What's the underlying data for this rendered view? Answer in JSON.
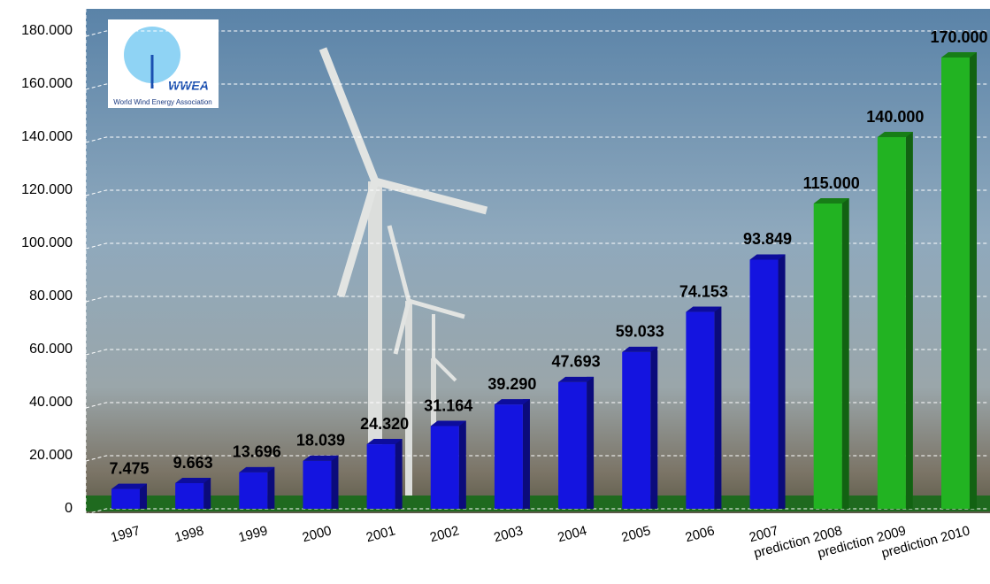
{
  "chart_data": {
    "type": "bar",
    "categories": [
      "1997",
      "1998",
      "1999",
      "2000",
      "2001",
      "2002",
      "2003",
      "2004",
      "2005",
      "2006",
      "2007",
      "prediction 2008",
      "prediction 2009",
      "prediction 2010"
    ],
    "values": [
      7475,
      9663,
      13696,
      18039,
      24320,
      31164,
      39290,
      47693,
      59033,
      74153,
      93849,
      115000,
      140000,
      170000
    ],
    "value_labels": [
      "7.475",
      "9.663",
      "13.696",
      "18.039",
      "24.320",
      "31.164",
      "39.290",
      "47.693",
      "59.033",
      "74.153",
      "93.849",
      "115.000",
      "140.000",
      "170.000"
    ],
    "colors": [
      "#1414e0",
      "#1414e0",
      "#1414e0",
      "#1414e0",
      "#1414e0",
      "#1414e0",
      "#1414e0",
      "#1414e0",
      "#1414e0",
      "#1414e0",
      "#1414e0",
      "#22b322",
      "#22b322",
      "#22b322"
    ],
    "ylim": [
      0,
      180000
    ],
    "yticks": [
      0,
      {
        "value": 20000,
        "label": "20.000"
      },
      {
        "value": 40000,
        "label": "40.000"
      },
      {
        "value": 60000,
        "label": "60.000"
      },
      {
        "value": 80000,
        "label": "80.000"
      },
      {
        "value": 100000,
        "label": "100.000"
      },
      {
        "value": 120000,
        "label": "120.000"
      },
      {
        "value": 140000,
        "label": "140.000"
      },
      {
        "value": 160000,
        "label": "160.000"
      },
      {
        "value": 180000,
        "label": "180.000"
      }
    ],
    "grid": true,
    "logo": {
      "title": "WWEA",
      "subtitle": "World Wind Energy Association"
    }
  }
}
